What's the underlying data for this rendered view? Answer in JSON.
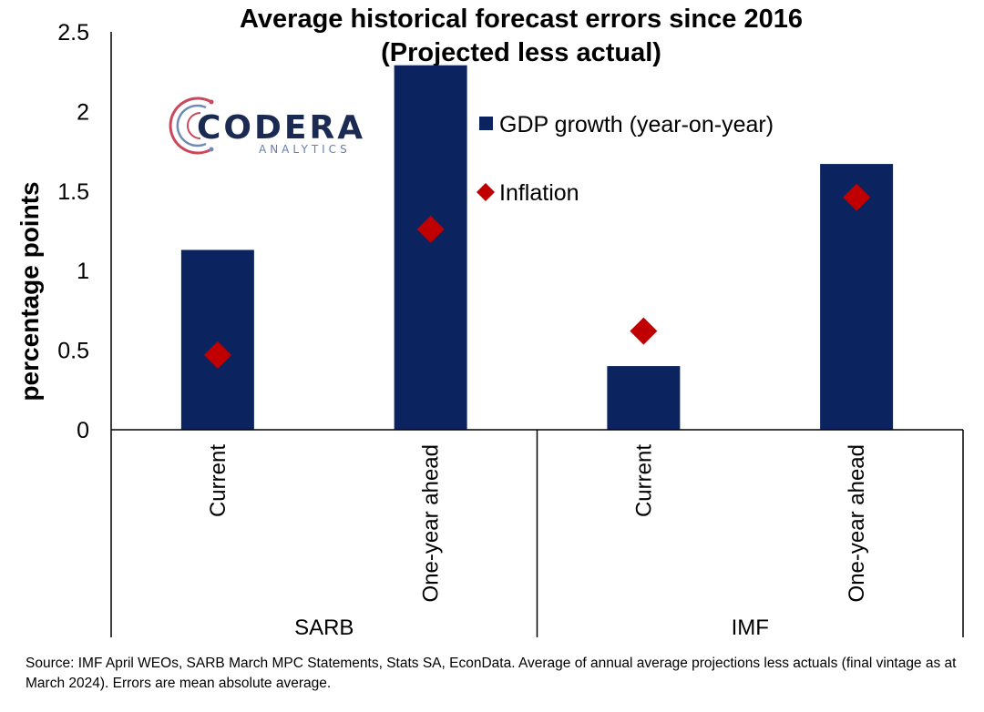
{
  "chart_data": {
    "type": "bar",
    "title": [
      "Average historical forecast errors since 2016",
      "(Projected less actual)"
    ],
    "ylabel": "percentage points",
    "ylim": [
      0,
      2.5
    ],
    "yticks": [
      "0",
      "0.5",
      "1",
      "1.5",
      "2",
      "2.5"
    ],
    "ytick_values": [
      0,
      0.5,
      1,
      1.5,
      2,
      2.5
    ],
    "groups": [
      {
        "name": "SARB",
        "categories": [
          "Current",
          "One-year ahead"
        ]
      },
      {
        "name": "IMF",
        "categories": [
          "Current",
          "One-year ahead"
        ]
      }
    ],
    "categories": [
      "SARB Current",
      "SARB One-year ahead",
      "IMF Current",
      "IMF One-year ahead"
    ],
    "series": [
      {
        "name": "GDP growth (year-on-year)",
        "type": "bar",
        "color": "#0b2460",
        "values": [
          1.13,
          2.29,
          0.4,
          1.67
        ]
      },
      {
        "name": "Inflation",
        "type": "marker-diamond",
        "color": "#c00000",
        "values": [
          0.47,
          1.26,
          0.62,
          1.46
        ]
      }
    ],
    "legend_position": "upper-center-inside",
    "grid": false
  },
  "logo": {
    "name": "CODERA",
    "sub": "ANALYTICS"
  },
  "source_note": "Source: IMF April WEOs, SARB March MPC Statements, Stats SA, EconData. Average of annual average projections less actuals (final vintage as at March 2024). Errors are mean absolute average."
}
